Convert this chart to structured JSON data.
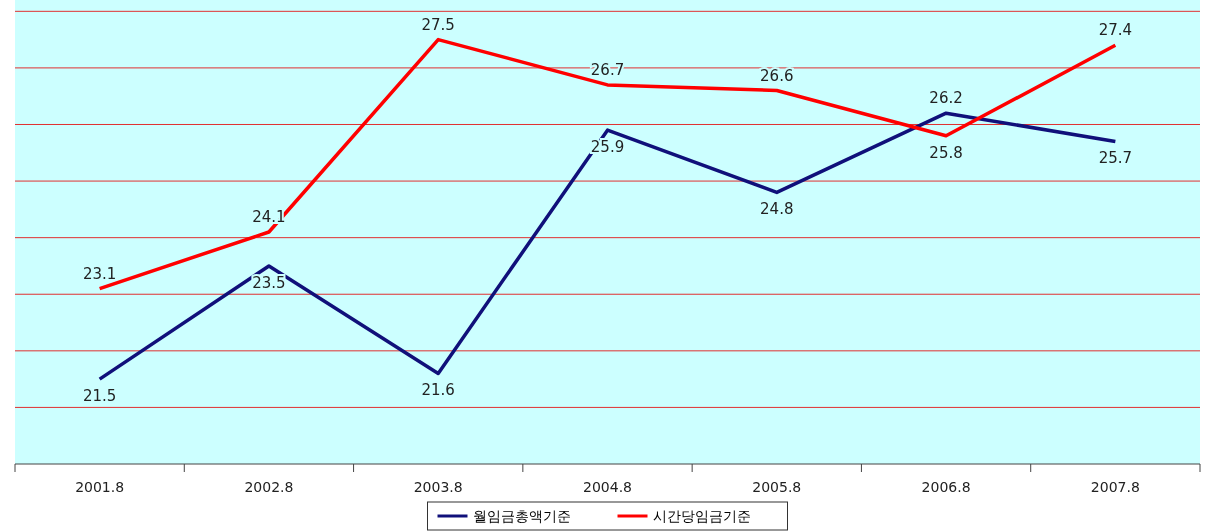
{
  "chart_data": {
    "type": "line",
    "categories": [
      "2001.8",
      "2002.8",
      "2003.8",
      "2004.8",
      "2005.8",
      "2006.8",
      "2007.8"
    ],
    "series": [
      {
        "name": "월임금총액기준",
        "color": "#10107a",
        "values": [
          21.5,
          23.5,
          21.6,
          25.9,
          24.8,
          26.2,
          25.7
        ]
      },
      {
        "name": "시간당임금기준",
        "color": "#ff0000",
        "values": [
          23.1,
          24.1,
          27.5,
          26.7,
          26.6,
          25.8,
          27.4
        ]
      }
    ],
    "ylim": [
      20,
      28.2
    ],
    "yticks": [
      {
        "value": 21,
        "label": null
      },
      {
        "value": 22,
        "label": null
      },
      {
        "value": 23,
        "label": null
      },
      {
        "value": 24,
        "label": null
      },
      {
        "value": 25,
        "label": null
      },
      {
        "value": 26,
        "label": null
      },
      {
        "value": 27,
        "label": null
      },
      {
        "value": 28,
        "label": null
      }
    ],
    "tick_labels": "x",
    "grid": "y",
    "data_labels": true,
    "legend": "bottom",
    "marker": "none",
    "line_style": "solid"
  }
}
